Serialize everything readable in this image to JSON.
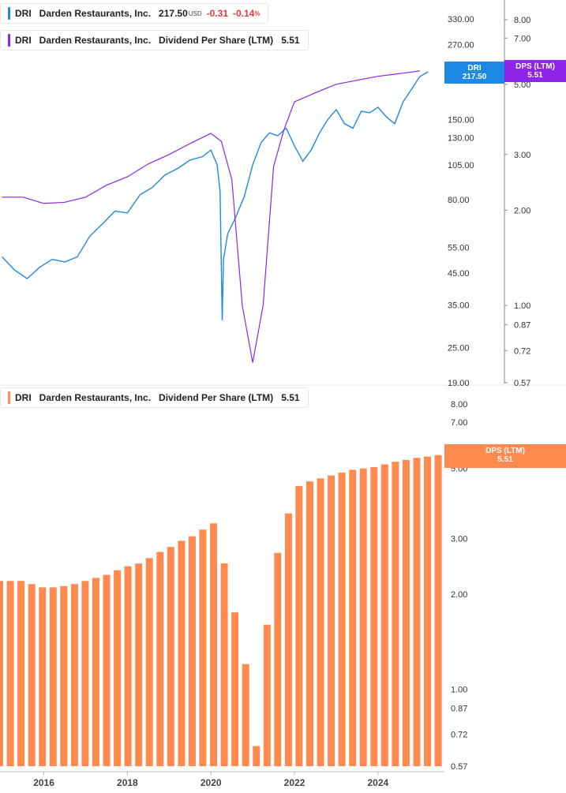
{
  "legend_top_price": {
    "ticker": "DRI",
    "name": "Darden Restaurants, Inc.",
    "price": "217.50",
    "currency": "USD",
    "change": "-0.31",
    "change_pct": "-0.14",
    "pct_sign": "%",
    "color": "#1e88e5"
  },
  "legend_top_dps": {
    "ticker": "DRI",
    "name": "Darden Restaurants, Inc.",
    "metric": "Dividend Per Share (LTM)",
    "value": "5.51",
    "color": "#8e24e8"
  },
  "legend_bottom_dps": {
    "ticker": "DRI",
    "name": "Darden Restaurants, Inc.",
    "metric": "Dividend Per Share (LTM)",
    "value": "5.51",
    "color": "#ff8a50"
  },
  "tags": {
    "price": {
      "line1": "DRI",
      "line2": "217.50",
      "color": "#1e88e5"
    },
    "dps_top": {
      "line1": "DPS (LTM)",
      "line2": "5.51",
      "color": "#8e24e8"
    },
    "dps_bottom": {
      "line1": "DPS (LTM)",
      "line2": "5.51",
      "color": "#ff8a50"
    }
  },
  "chart_data": [
    {
      "type": "line",
      "scale": "log",
      "series": [
        {
          "name": "DRI",
          "color": "#1e88e5",
          "x": [
            2015.0,
            2015.3,
            2015.6,
            2015.9,
            2016.2,
            2016.5,
            2016.8,
            2017.1,
            2017.4,
            2017.7,
            2018.0,
            2018.3,
            2018.6,
            2018.9,
            2019.2,
            2019.5,
            2019.8,
            2020.0,
            2020.15,
            2020.22,
            2020.27,
            2020.3,
            2020.4,
            2020.6,
            2020.8,
            2021.0,
            2021.2,
            2021.4,
            2021.6,
            2021.8,
            2022.0,
            2022.2,
            2022.4,
            2022.6,
            2022.8,
            2023.0,
            2023.2,
            2023.4,
            2023.6,
            2023.8,
            2024.0,
            2024.2,
            2024.4,
            2024.6,
            2024.8,
            2025.0,
            2025.2
          ],
          "values": [
            51,
            46,
            43,
            47,
            50,
            49,
            51,
            60,
            66,
            73,
            72,
            83,
            88,
            97,
            102,
            109,
            112,
            118,
            105,
            85,
            31,
            50,
            61,
            70,
            82,
            105,
            125,
            135,
            132,
            140,
            122,
            108,
            118,
            135,
            150,
            162,
            145,
            140,
            160,
            158,
            165,
            153,
            145,
            172,
            190,
            210,
            218
          ]
        },
        {
          "name": "Dividend Per Share (LTM)",
          "color": "#8e24e8",
          "x": [
            2015.0,
            2015.5,
            2016.0,
            2016.5,
            2017.0,
            2017.5,
            2018.0,
            2018.5,
            2019.0,
            2019.5,
            2020.0,
            2020.25,
            2020.5,
            2020.75,
            2021.0,
            2021.25,
            2021.5,
            2021.75,
            2022.0,
            2022.5,
            2023.0,
            2023.5,
            2024.0,
            2024.5,
            2025.0
          ],
          "values": [
            2.2,
            2.2,
            2.1,
            2.12,
            2.2,
            2.4,
            2.55,
            2.8,
            3.0,
            3.25,
            3.5,
            3.3,
            2.5,
            1.0,
            0.66,
            1.0,
            2.75,
            3.6,
            4.4,
            4.7,
            5.0,
            5.15,
            5.3,
            5.4,
            5.51
          ]
        }
      ],
      "left_axis_ticks": [
        "19.00",
        "25.00",
        "35.00",
        "45.00",
        "55.00",
        "80.00",
        "105.00",
        "130.00",
        "150.00",
        "270.00",
        "330.00"
      ],
      "right_axis_ticks": [
        "0.57",
        "0.72",
        "0.87",
        "1.00",
        "2.00",
        "3.00",
        "5.00",
        "7.00",
        "8.00"
      ]
    },
    {
      "type": "bar",
      "scale": "log",
      "series": [
        {
          "name": "Dividend Per Share (LTM)",
          "color": "#ff8a50",
          "values": [
            2.2,
            2.2,
            2.2,
            2.15,
            2.1,
            2.1,
            2.12,
            2.15,
            2.2,
            2.25,
            2.3,
            2.38,
            2.45,
            2.5,
            2.6,
            2.72,
            2.82,
            2.95,
            3.05,
            3.2,
            3.35,
            2.5,
            1.75,
            1.2,
            0.66,
            1.6,
            2.7,
            3.6,
            4.4,
            4.55,
            4.65,
            4.75,
            4.85,
            4.95,
            5.0,
            5.05,
            5.15,
            5.25,
            5.32,
            5.4,
            5.45,
            5.51
          ]
        }
      ],
      "x_axis_ticks": [
        "2016",
        "2018",
        "2020",
        "2022",
        "2024"
      ],
      "y_axis_ticks": [
        "0.57",
        "0.72",
        "0.87",
        "1.00",
        "2.00",
        "3.00",
        "5.00",
        "7.00",
        "8.00"
      ]
    }
  ]
}
